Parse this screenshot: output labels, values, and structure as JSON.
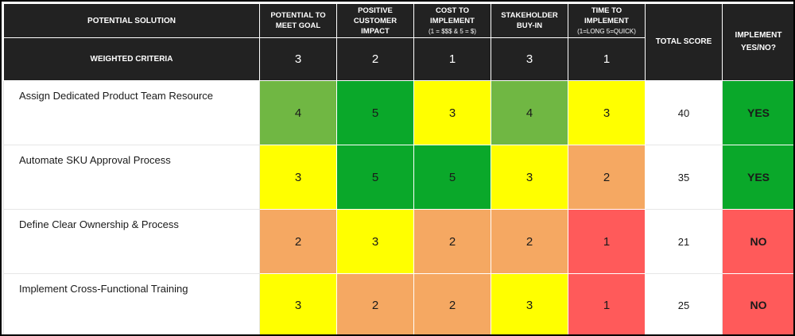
{
  "colors": {
    "header_bg": "#222222",
    "header_text": "#ffffff",
    "score_5": "#0aa82a",
    "score_4": "#70b743",
    "score_3": "#ffff00",
    "score_2": "#f5a862",
    "score_1": "#ff5a5a",
    "impl_yes": "#0aa82a",
    "impl_no": "#ff5a5a"
  },
  "header": {
    "solution_label": "POTENTIAL SOLUTION",
    "weighted_label": "WEIGHTED CRITERIA",
    "total_label": "TOTAL SCORE",
    "implement_label": "IMPLEMENT YES/NO?",
    "criteria": [
      {
        "title": "POTENTIAL TO MEET GOAL",
        "sub": "",
        "weight": "3"
      },
      {
        "title": "POSITIVE CUSTOMER IMPACT",
        "sub": "",
        "weight": "2"
      },
      {
        "title": "COST TO IMPLEMENT",
        "sub": "(1 = $$$ & 5 = $)",
        "weight": "1"
      },
      {
        "title": "STAKEHOLDER BUY-IN",
        "sub": "",
        "weight": "3"
      },
      {
        "title": "TIME TO IMPLEMENT",
        "sub": "(1=LONG 5=QUICK)",
        "weight": "1"
      }
    ]
  },
  "rows": [
    {
      "name": "Assign Dedicated Product Team Resource",
      "scores": [
        "4",
        "5",
        "3",
        "4",
        "3"
      ],
      "total": "40",
      "implement": "YES"
    },
    {
      "name": "Automate SKU Approval Process",
      "scores": [
        "3",
        "5",
        "5",
        "3",
        "2"
      ],
      "total": "35",
      "implement": "YES"
    },
    {
      "name": "Define Clear Ownership & Process",
      "scores": [
        "2",
        "3",
        "2",
        "2",
        "1"
      ],
      "total": "21",
      "implement": "NO"
    },
    {
      "name": "Implement Cross-Functional Training",
      "scores": [
        "3",
        "2",
        "2",
        "3",
        "1"
      ],
      "total": "25",
      "implement": "NO"
    }
  ]
}
